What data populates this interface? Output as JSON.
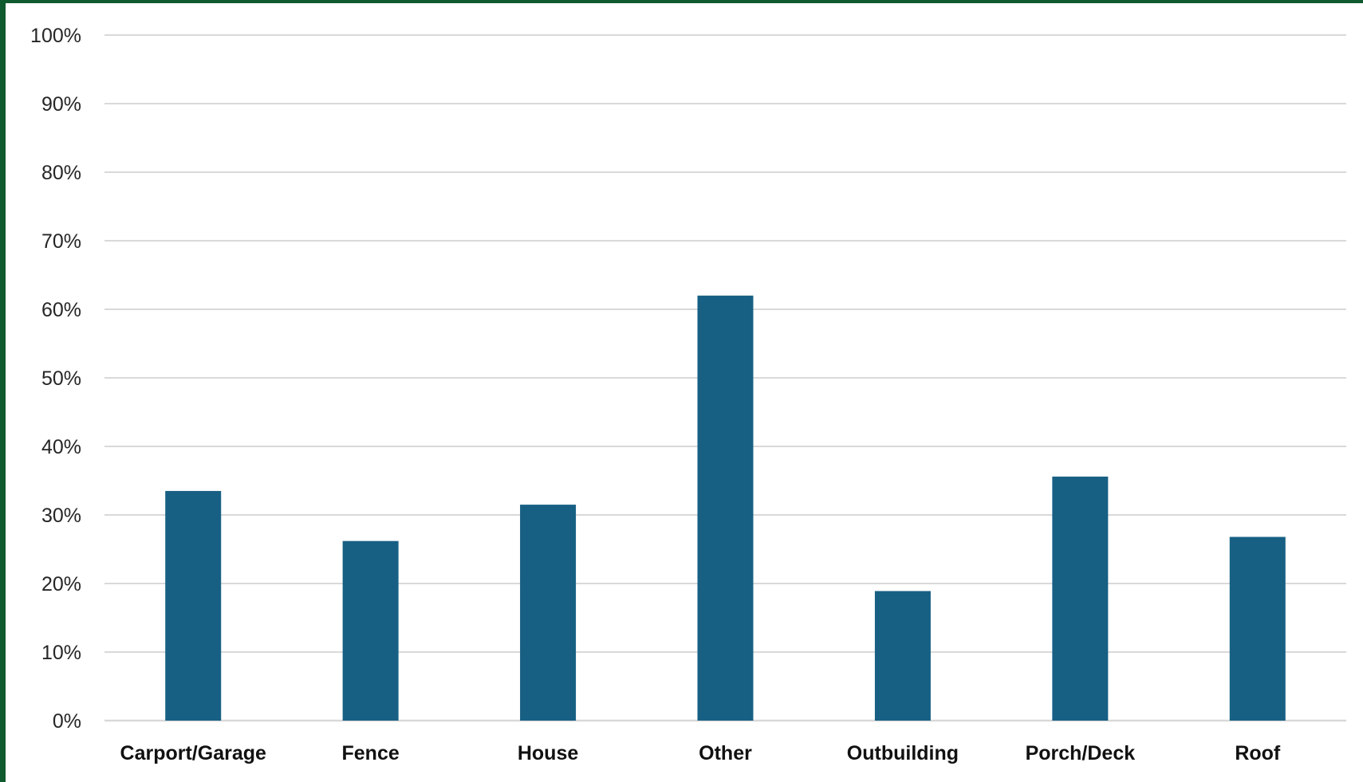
{
  "chart_data": {
    "type": "bar",
    "categories": [
      "Carport/Garage",
      "Fence",
      "House",
      "Other",
      "Outbuilding",
      "Porch/Deck",
      "Roof"
    ],
    "values": [
      33.5,
      26.2,
      31.5,
      62,
      18.9,
      35.6,
      26.8
    ],
    "title": "",
    "xlabel": "",
    "ylabel": "",
    "ylim": [
      0,
      100
    ],
    "yticks": [
      "0%",
      "10%",
      "20%",
      "30%",
      "40%",
      "50%",
      "60%",
      "70%",
      "80%",
      "90%",
      "100%"
    ],
    "grid": true,
    "bar_color": "#176084",
    "gridline_color": "#d9d9d9",
    "frame_color": "#0f5a2e"
  }
}
